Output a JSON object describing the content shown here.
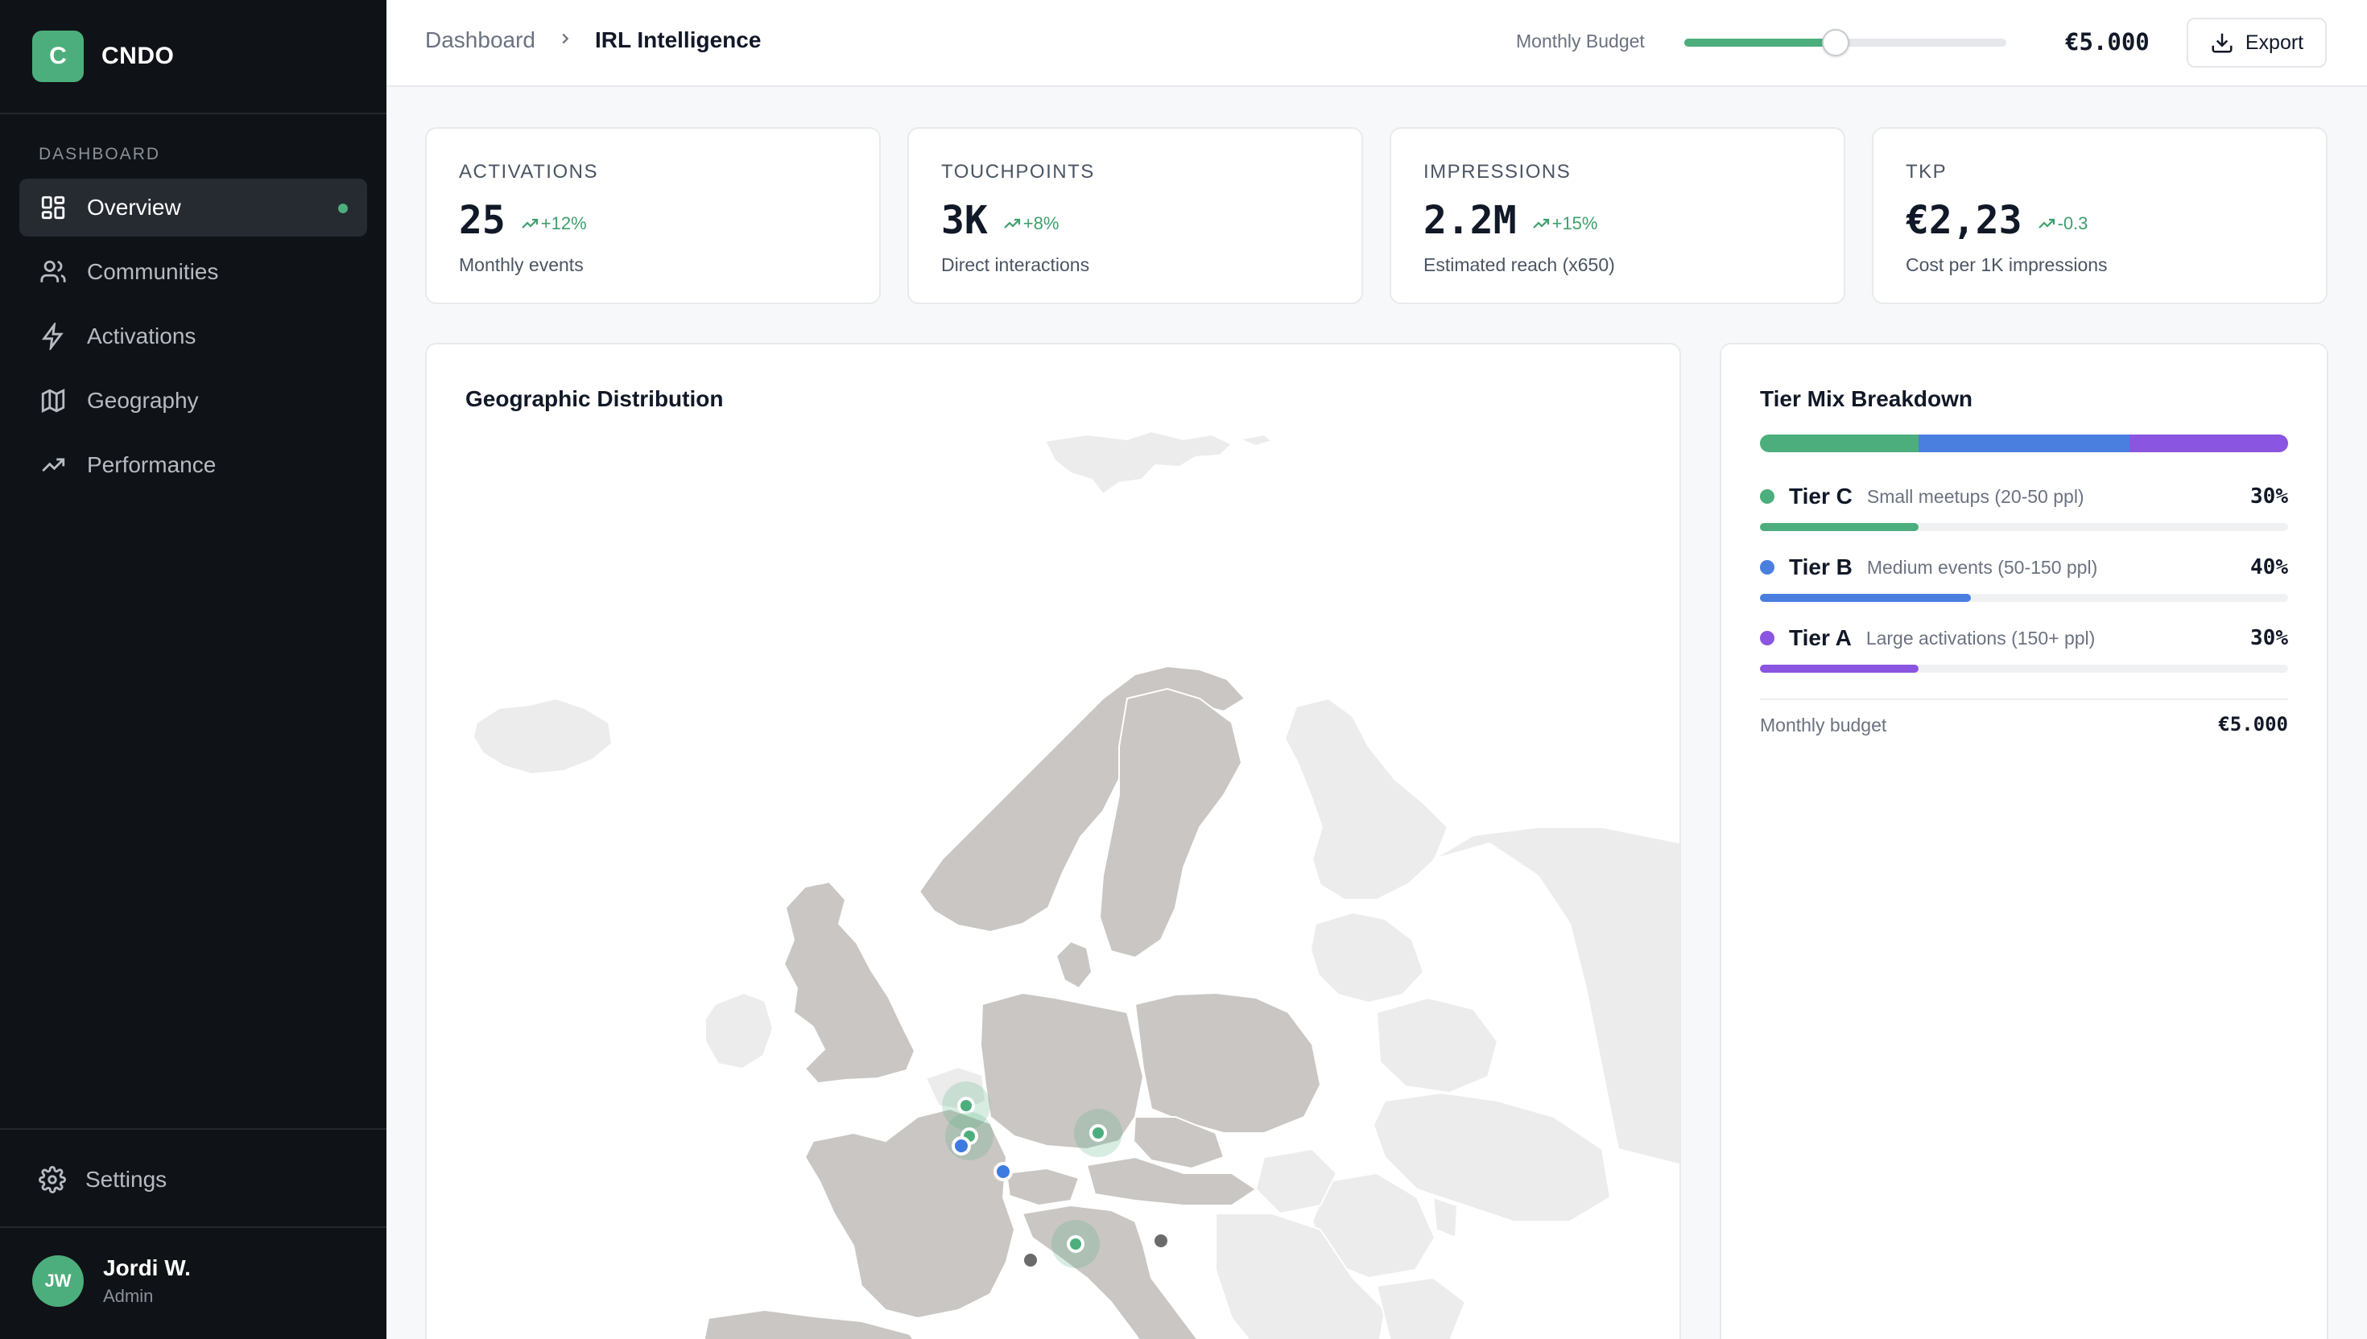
{
  "brand": {
    "logo_letter": "C",
    "name": "CNDO"
  },
  "sidebar": {
    "section_label": "DASHBOARD",
    "items": [
      {
        "label": "Overview",
        "icon": "layout-grid-icon",
        "active": true
      },
      {
        "label": "Communities",
        "icon": "users-icon",
        "active": false
      },
      {
        "label": "Activations",
        "icon": "zap-icon",
        "active": false
      },
      {
        "label": "Geography",
        "icon": "map-icon",
        "active": false
      },
      {
        "label": "Performance",
        "icon": "trending-up-icon",
        "active": false
      }
    ],
    "settings_label": "Settings",
    "user": {
      "initials": "JW",
      "name": "Jordi W.",
      "role": "Admin"
    }
  },
  "header": {
    "breadcrumb_root": "Dashboard",
    "breadcrumb_current": "IRL Intelligence",
    "budget_label": "Monthly Budget",
    "budget_slider_fraction": 0.47,
    "budget_value": "€5.000",
    "export_label": "Export"
  },
  "kpis": [
    {
      "label": "ACTIVATIONS",
      "value": "25",
      "delta": "+12%",
      "sub": "Monthly events"
    },
    {
      "label": "TOUCHPOINTS",
      "value": "3K",
      "delta": "+8%",
      "sub": "Direct interactions"
    },
    {
      "label": "IMPRESSIONS",
      "value": "2.2M",
      "delta": "+15%",
      "sub": "Estimated reach (x650)"
    },
    {
      "label": "TKP",
      "value": "€2,23",
      "delta": "-0.3",
      "sub": "Cost per 1K impressions"
    }
  ],
  "map": {
    "title": "Geographic Distribution",
    "active_country_color": "#c9c6c3",
    "inactive_country_color": "#ececec",
    "marker_colors": {
      "tier_c": "#4cae7c",
      "tier_b": "#3d7be0",
      "inactive": "#6b6b6b"
    }
  },
  "tiers": {
    "title": "Tier Mix Breakdown",
    "items": [
      {
        "name": "Tier C",
        "desc": "Small meetups (20-50 ppl)",
        "pct_label": "30%",
        "fraction": 0.3,
        "color": "#4cae7c"
      },
      {
        "name": "Tier B",
        "desc": "Medium events (50-150 ppl)",
        "pct_label": "40%",
        "fraction": 0.4,
        "color": "#4a7fe0"
      },
      {
        "name": "Tier A",
        "desc": "Large activations (150+ ppl)",
        "pct_label": "30%",
        "fraction": 0.3,
        "color": "#8a55e0"
      }
    ],
    "footer_label": "Monthly budget",
    "footer_value": "€5.000"
  },
  "colors": {
    "accent": "#4cae7c",
    "sidebar_bg": "#0f1216"
  }
}
